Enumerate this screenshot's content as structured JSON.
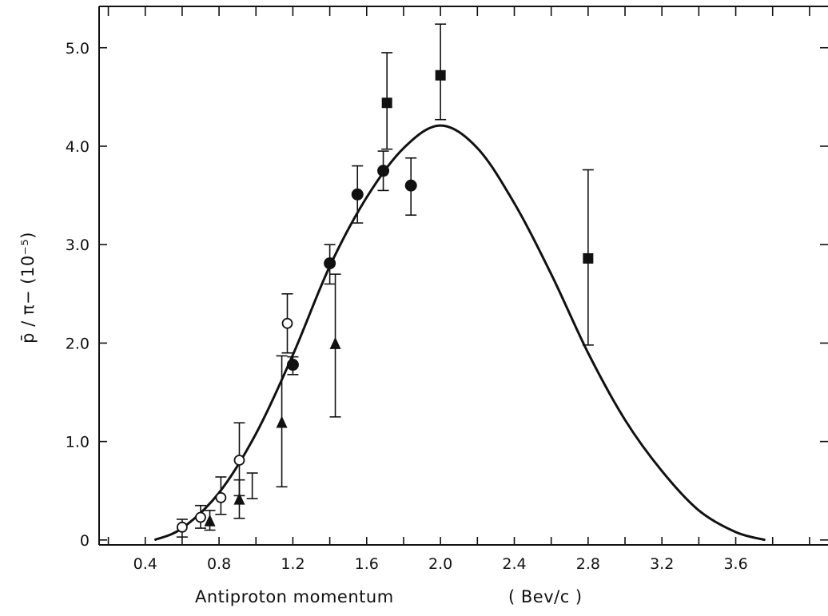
{
  "chart_data": {
    "type": "scatter",
    "xlabel": "Antiproton momentum",
    "xlabel_units": "( Bev/c )",
    "ylabel": "p̄ / π−  (10⁻⁵)",
    "xlim": [
      0.15,
      4.1
    ],
    "ylim": [
      -0.05,
      5.42
    ],
    "x_tick_labels": [
      {
        "value": 0.4,
        "label": "0.4"
      },
      {
        "value": 0.8,
        "label": "0.8"
      },
      {
        "value": 1.2,
        "label": "1.2"
      },
      {
        "value": 1.6,
        "label": "1.6"
      },
      {
        "value": 2.0,
        "label": "2.0"
      },
      {
        "value": 2.4,
        "label": "2.4"
      },
      {
        "value": 2.8,
        "label": "2.8"
      },
      {
        "value": 3.2,
        "label": "3.2"
      },
      {
        "value": 3.6,
        "label": "3.6"
      }
    ],
    "y_tick_labels": [
      {
        "value": 0,
        "label": "0"
      },
      {
        "value": 1,
        "label": "1.0"
      },
      {
        "value": 2,
        "label": "2.0"
      },
      {
        "value": 3,
        "label": "3.0"
      },
      {
        "value": 4,
        "label": "4.0"
      },
      {
        "value": 5,
        "label": "5.0"
      }
    ],
    "curve": {
      "x": [
        0.45,
        0.6,
        0.8,
        1.0,
        1.2,
        1.4,
        1.6,
        1.8,
        2.0,
        2.2,
        2.4,
        2.6,
        2.8,
        3.0,
        3.2,
        3.4,
        3.6,
        3.76
      ],
      "y": [
        0.0,
        0.12,
        0.48,
        1.08,
        1.88,
        2.78,
        3.48,
        3.98,
        4.21,
        3.98,
        3.42,
        2.7,
        1.9,
        1.22,
        0.7,
        0.3,
        0.08,
        0.0
      ]
    },
    "series": [
      {
        "marker": "open-circle",
        "points": [
          {
            "x": 0.6,
            "y": 0.13,
            "lo": 0.03,
            "hi": 0.21
          },
          {
            "x": 0.7,
            "y": 0.23,
            "lo": 0.12,
            "hi": 0.35
          },
          {
            "x": 0.81,
            "y": 0.43,
            "lo": 0.26,
            "hi": 0.64
          },
          {
            "x": 0.91,
            "y": 0.81,
            "lo": 0.45,
            "hi": 1.19
          },
          {
            "x": 1.17,
            "y": 2.2,
            "lo": 1.9,
            "hi": 2.5
          }
        ]
      },
      {
        "marker": "filled-circle",
        "points": [
          {
            "x": 1.2,
            "y": 1.78,
            "lo": 1.68,
            "hi": 1.86
          },
          {
            "x": 1.4,
            "y": 2.81,
            "lo": 2.6,
            "hi": 3.0
          },
          {
            "x": 1.55,
            "y": 3.51,
            "lo": 3.22,
            "hi": 3.8
          },
          {
            "x": 1.69,
            "y": 3.75,
            "lo": 3.55,
            "hi": 3.95
          },
          {
            "x": 1.84,
            "y": 3.6,
            "lo": 3.3,
            "hi": 3.88
          }
        ]
      },
      {
        "marker": "filled-triangle",
        "points": [
          {
            "x": 0.75,
            "y": 0.2,
            "lo": 0.1,
            "hi": 0.3
          },
          {
            "x": 0.91,
            "y": 0.42,
            "lo": 0.22,
            "hi": 0.61
          },
          {
            "x": 1.14,
            "y": 1.2,
            "lo": 0.54,
            "hi": 1.87
          },
          {
            "x": 1.43,
            "y": 2.0,
            "lo": 1.25,
            "hi": 2.7
          }
        ]
      },
      {
        "marker": "filled-square",
        "points": [
          {
            "x": 1.71,
            "y": 4.44,
            "lo": 3.97,
            "hi": 4.95
          },
          {
            "x": 2.0,
            "y": 4.72,
            "lo": 4.27,
            "hi": 5.24
          },
          {
            "x": 2.8,
            "y": 2.86,
            "lo": 1.98,
            "hi": 3.76
          }
        ]
      }
    ],
    "extra_error_bars": [
      {
        "x": 0.98,
        "lo": 0.42,
        "hi": 0.68
      }
    ],
    "grid": false,
    "legend": "none"
  }
}
